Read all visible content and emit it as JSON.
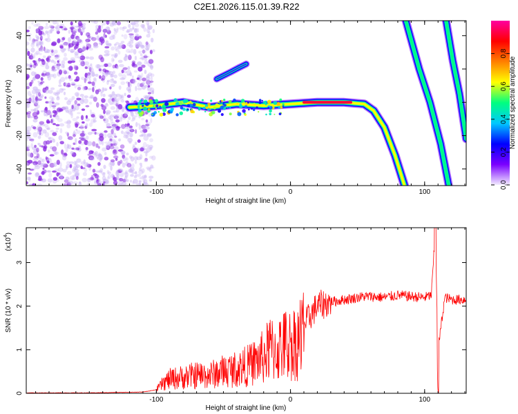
{
  "title": "C2E1.2026.115.01.39.R22",
  "chart_data": [
    {
      "type": "heatmap",
      "name": "spectrogram",
      "xlabel": "Height of straight line (km)",
      "ylabel": "Frequency (Hz)",
      "xlim": [
        -197,
        131
      ],
      "ylim": [
        -50,
        49
      ],
      "xticks": [
        -100,
        0,
        100
      ],
      "yticks": [
        -40,
        -20,
        0,
        20,
        40
      ],
      "colorbar": {
        "label": "Normalized spectral amplitude",
        "range": [
          0,
          1
        ],
        "ticks": [
          "0.0",
          "0.2",
          "0.4",
          "0.6",
          "0.8"
        ],
        "ticks_value": [
          0,
          0.2,
          0.4,
          0.6,
          0.8
        ],
        "colors": [
          "#f2ecff",
          "#7a00ff",
          "#0000ff",
          "#00c8ff",
          "#00ff80",
          "#ffff00",
          "#ff8000",
          "#ff0000",
          "#ff00a0"
        ]
      },
      "features": [
        {
          "name": "main_trace",
          "points": [
            [
              -120,
              -3
            ],
            [
              -100,
              -2
            ],
            [
              -80,
              0
            ],
            [
              -60,
              -3
            ],
            [
              -40,
              -1
            ],
            [
              -20,
              -2
            ],
            [
              0,
              -1
            ],
            [
              20,
              0
            ],
            [
              40,
              0
            ],
            [
              55,
              -1
            ],
            [
              62,
              -5
            ],
            [
              70,
              -15
            ],
            [
              78,
              -32
            ],
            [
              85,
              -50
            ]
          ]
        },
        {
          "name": "side_blob",
          "points": [
            [
              -55,
              14
            ],
            [
              -45,
              18
            ],
            [
              -38,
              21
            ],
            [
              -33,
              23
            ]
          ]
        },
        {
          "name": "stripe_1",
          "points": [
            [
              86,
              49
            ],
            [
              96,
              20
            ],
            [
              104,
              0
            ],
            [
              112,
              -25
            ],
            [
              118,
              -50
            ]
          ]
        },
        {
          "name": "stripe_2",
          "points": [
            [
              116,
              49
            ],
            [
              121,
              25
            ],
            [
              126,
              5
            ],
            [
              131,
              -22
            ]
          ]
        }
      ]
    },
    {
      "type": "line",
      "name": "snr",
      "xlabel": "Height of straight line (km)",
      "ylabel": "SNR (10 * v/v)",
      "y_multiplier": "(x10",
      "y_multiplier_exp": "4",
      "xlim": [
        -197,
        131
      ],
      "ylim": [
        0,
        3.8
      ],
      "xticks": [
        -100,
        0,
        100
      ],
      "yticks": [
        0,
        1,
        2,
        3
      ],
      "color": "#ff0000",
      "series": [
        {
          "name": "SNR",
          "x": [
            -197,
            -150,
            -110,
            -100,
            -95,
            -90,
            -80,
            -70,
            -60,
            -50,
            -40,
            -30,
            -20,
            -15,
            -10,
            -5,
            0,
            5,
            10,
            15,
            20,
            25,
            30,
            35,
            40,
            45,
            50,
            55,
            60,
            70,
            80,
            90,
            100,
            105,
            108,
            110,
            115,
            120,
            131
          ],
          "y": [
            0.01,
            0.01,
            0.03,
            0.08,
            0.25,
            0.35,
            0.4,
            0.45,
            0.45,
            0.55,
            0.6,
            0.7,
            0.9,
            1.1,
            1.05,
            1.2,
            1.2,
            1.3,
            1.55,
            1.8,
            2.0,
            2.05,
            2.1,
            2.12,
            2.15,
            2.17,
            2.2,
            2.22,
            2.22,
            2.2,
            2.25,
            2.22,
            2.2,
            2.25,
            3.7,
            1.0,
            2.2,
            2.15,
            2.15
          ]
        }
      ]
    }
  ]
}
